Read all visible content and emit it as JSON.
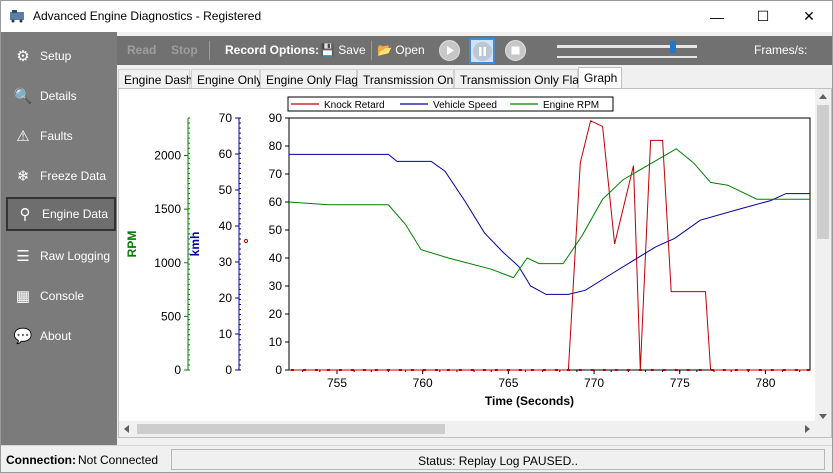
{
  "window": {
    "title": "Advanced Engine Diagnostics - Registered"
  },
  "titlebar_controls": {
    "minimize": "—",
    "maximize": "☐",
    "close": "✕"
  },
  "sidebar": {
    "items": [
      {
        "label": "Setup",
        "icon": "gears-icon",
        "glyph": "⚙"
      },
      {
        "label": "Details",
        "icon": "magnifier-icon",
        "glyph": "🔍"
      },
      {
        "label": "Faults",
        "icon": "warning-icon",
        "glyph": "⚠"
      },
      {
        "label": "Freeze Data",
        "icon": "snowflake-icon",
        "glyph": "❄"
      },
      {
        "label": "Engine Data",
        "icon": "engine-icon",
        "glyph": "⚲"
      },
      {
        "label": "Raw Logging",
        "icon": "lines-icon",
        "glyph": "☰"
      },
      {
        "label": "Console",
        "icon": "chip-icon",
        "glyph": "▦"
      },
      {
        "label": "About",
        "icon": "chat-icon",
        "glyph": "💬"
      }
    ],
    "active": "Engine Data"
  },
  "toolbar": {
    "read": "Read",
    "stop": "Stop",
    "record_options": "Record Options:",
    "save": "Save",
    "open": "Open",
    "frames_label": "Frames/s:"
  },
  "tabs": [
    "Engine Dash",
    "Engine Only",
    "Engine Only Flags",
    "Transmission Only",
    "Transmission Only Flags",
    "Graph"
  ],
  "active_tab": "Graph",
  "status": {
    "connection_label": "Connection:",
    "connection_value": "Not Connected",
    "message": "Status: Replay Log PAUSED.."
  },
  "colors": {
    "rpm": "#008000",
    "kmh": "#0000a0",
    "knock": "#c00000",
    "sidebar": "#7b7b7b",
    "toolbar": "#717171"
  },
  "chart_data": {
    "type": "line",
    "xlabel": "Time (Seconds)",
    "xlim": [
      752.2,
      782.6
    ],
    "xticks": [
      755,
      760,
      765,
      770,
      775,
      780
    ],
    "main_yticks": [
      0,
      10,
      20,
      30,
      40,
      50,
      60,
      70,
      80,
      90
    ],
    "main_ylim": [
      0,
      90
    ],
    "axes": [
      {
        "label": "RPM",
        "color": "#008000",
        "ticks": [
          0,
          500,
          1000,
          1500,
          2000
        ],
        "ylim": [
          0,
          2350
        ]
      },
      {
        "label": "kmh",
        "color": "#0000a0",
        "ticks": [
          0,
          10,
          20,
          30,
          40,
          50,
          60,
          70
        ],
        "ylim": [
          0,
          70
        ]
      }
    ],
    "legend": "top-left",
    "series": [
      {
        "name": "Knock Retard",
        "color": "#c00000",
        "x": [
          752.2,
          768.5,
          769.2,
          769.8,
          770.5,
          771.2,
          772.3,
          772.7,
          773.3,
          774.0,
          774.5,
          776.5,
          776.8,
          782.6
        ],
        "y": [
          0,
          0,
          74,
          89,
          87,
          45,
          73,
          0,
          82,
          82,
          28,
          28,
          0,
          0
        ]
      },
      {
        "name": "Vehicle Speed",
        "color": "#0000a0",
        "x": [
          752.2,
          758,
          758.5,
          760.5,
          761.3,
          762.5,
          763.6,
          764.7,
          765.6,
          766.3,
          767.2,
          768.5,
          769.5,
          771.2,
          772.8,
          773.6,
          774.7,
          776.2,
          778.5,
          780.3,
          781.2,
          782.6
        ],
        "y": [
          77,
          77,
          74.5,
          74.5,
          71,
          60,
          49,
          42,
          37,
          30,
          27,
          27,
          28.5,
          35,
          41,
          44,
          47,
          53.5,
          57.5,
          60.5,
          63,
          63
        ]
      },
      {
        "name": "Engine RPM",
        "color": "#008000",
        "x": [
          752.2,
          754.5,
          758,
          759,
          759.9,
          761.5,
          764,
          765.3,
          766.1,
          766.8,
          768.2,
          769.3,
          770.5,
          771.7,
          774.8,
          775.8,
          776.8,
          777.8,
          779.5,
          782.6
        ],
        "y": [
          60,
          59,
          59,
          52,
          43,
          40,
          36,
          33,
          40,
          38,
          38,
          48,
          61,
          68,
          79,
          74,
          67,
          66,
          61,
          61
        ]
      }
    ]
  }
}
